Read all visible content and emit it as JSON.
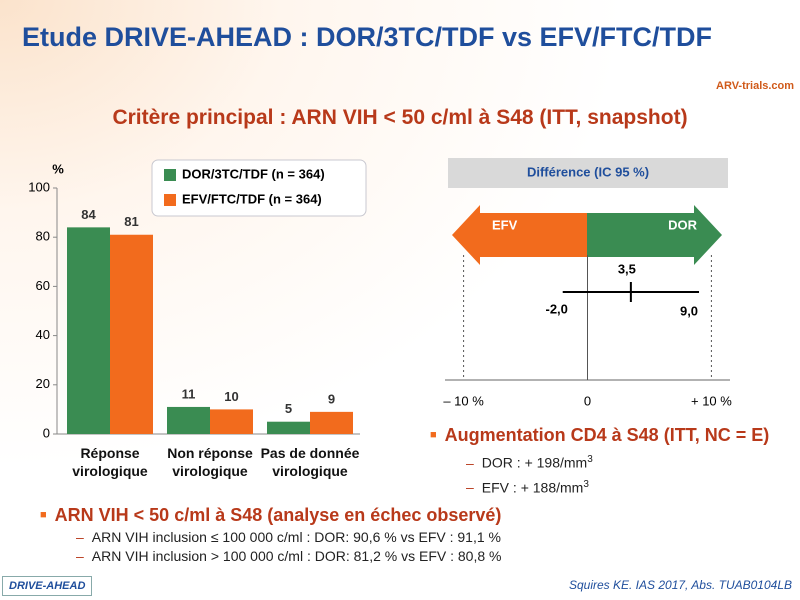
{
  "title": "Etude DRIVE-AHEAD : DOR/3TC/TDF vs EFV/FTC/TDF",
  "logo": "ARV-trials.com",
  "subtitle": "Critère principal : ARN VIH < 50 c/ml à S48 (ITT, snapshot)",
  "chart_data": [
    {
      "type": "bar",
      "ylabel": "%",
      "categories": [
        "Réponse virologique",
        "Non réponse virologique",
        "Pas de donnée virologique"
      ],
      "series": [
        {
          "name": "DOR/3TC/TDF (n = 364)",
          "color": "#3a8c52",
          "values": [
            84,
            11,
            5
          ]
        },
        {
          "name": "EFV/FTC/TDF (n = 364)",
          "color": "#f26b1d",
          "values": [
            81,
            10,
            9
          ]
        }
      ],
      "ylim": [
        0,
        100
      ],
      "yticks": [
        0,
        20,
        40,
        60,
        80,
        100
      ],
      "legend": "top-right"
    },
    {
      "type": "forest",
      "title": "Différence (IC 95 %)",
      "arrow_left": "EFV",
      "arrow_right": "DOR",
      "arrow_left_color": "#f26b1d",
      "arrow_right_color": "#3a8c52",
      "values": [
        3.5
      ],
      "value_labels": [
        "3,5"
      ],
      "ci": [
        [
          -2.0,
          9.0
        ]
      ],
      "ci_labels": [
        [
          "-2,0",
          "9,0"
        ]
      ],
      "xlim": [
        -11.5,
        11.5
      ],
      "xticks": [
        {
          "value": -10,
          "label": "– 10 %"
        },
        0,
        {
          "value": 10,
          "label": "+ 10 %"
        }
      ]
    }
  ],
  "cd4": {
    "heading": "Augmentation CD4 à S48 (ITT, NC = E)",
    "items": [
      {
        "text": "DOR : + 198/mm",
        "sup": "3"
      },
      {
        "text": "EFV : + 188/mm",
        "sup": "3"
      }
    ]
  },
  "observed": {
    "heading": "ARN VIH < 50 c/ml à S48 (analyse en échec observé)",
    "items": [
      "ARN VIH inclusion ≤ 100 000 c/ml : DOR: 90,6 % vs EFV : 91,1 %",
      "ARN VIH inclusion > 100 000 c/ml : DOR: 81,2 % vs EFV : 80,8 %"
    ]
  },
  "tag": "DRIVE-AHEAD",
  "citation": "Squires KE. IAS 2017, Abs. TUAB0104LB"
}
